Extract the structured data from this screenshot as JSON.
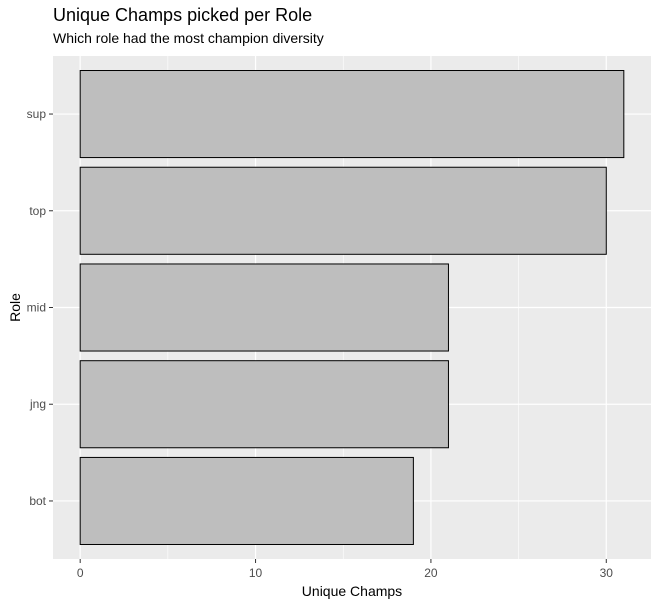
{
  "chart_data": {
    "type": "bar",
    "orientation": "horizontal",
    "title": "Unique Champs picked per Role",
    "subtitle": "Which role had the most champion diversity",
    "xlabel": "Unique Champs",
    "ylabel": "Role",
    "categories": [
      "sup",
      "top",
      "mid",
      "jng",
      "bot"
    ],
    "values": [
      31,
      30,
      21,
      21,
      19
    ],
    "xlim": [
      -1.55,
      32.55
    ],
    "xticks": [
      0,
      10,
      20,
      30
    ],
    "grid": true,
    "legend": "none",
    "colors": {
      "panel_background": "#ebebeb",
      "grid_major": "#ffffff",
      "bar_fill": "#bebebe",
      "bar_stroke": "#000000",
      "tick_text": "#4d4d4d"
    }
  }
}
